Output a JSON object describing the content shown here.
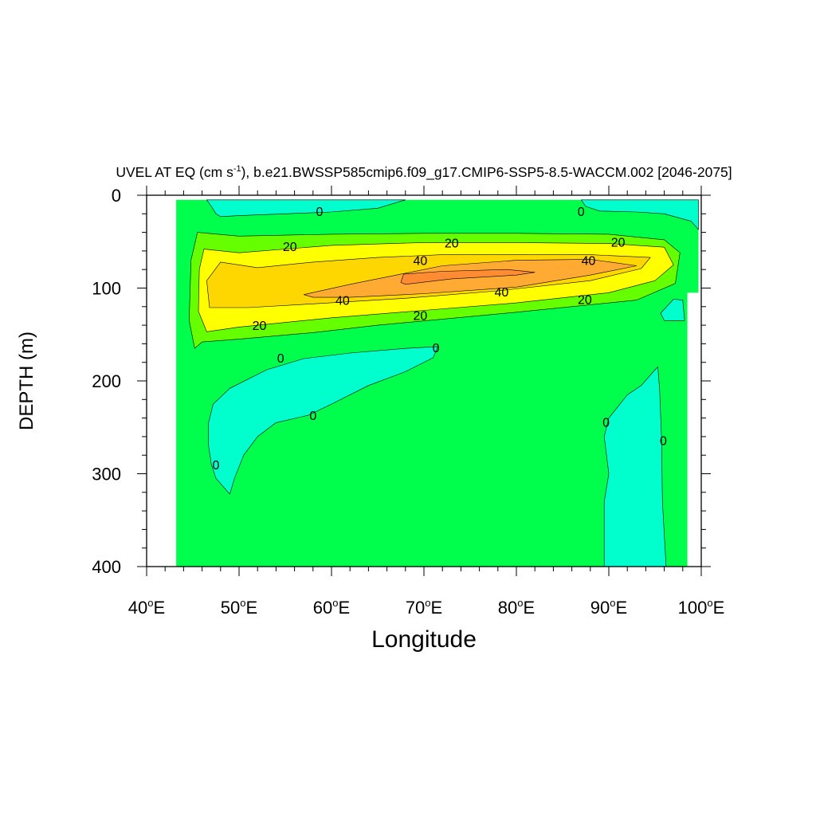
{
  "chart_data": {
    "type": "contour",
    "title_prefix": "UVEL AT EQ (cm s",
    "title_sup": "-1",
    "title_suffix": "), b.e21.BWSSP585cmip6.f09_g17.CMIP6-SSP5-8.5-WACCM.002 [2046-2075]",
    "xlabel": "Longitude",
    "ylabel": "DEPTH (m)",
    "xlim": [
      40,
      100
    ],
    "ylim": [
      0,
      400
    ],
    "y_inverted": true,
    "x_ticks": [
      40,
      50,
      60,
      70,
      80,
      90,
      100
    ],
    "x_tick_labels": [
      {
        "num": "40",
        "sup": "o",
        "suf": "E"
      },
      {
        "num": "50",
        "sup": "o",
        "suf": "E"
      },
      {
        "num": "60",
        "sup": "o",
        "suf": "E"
      },
      {
        "num": "70",
        "sup": "o",
        "suf": "E"
      },
      {
        "num": "80",
        "sup": "o",
        "suf": "E"
      },
      {
        "num": "90",
        "sup": "o",
        "suf": "E"
      },
      {
        "num": "100",
        "sup": "o",
        "suf": "E"
      }
    ],
    "y_ticks": [
      0,
      100,
      200,
      300,
      400
    ],
    "y_tick_labels": [
      "0",
      "100",
      "200",
      "300",
      "400"
    ],
    "data_extent": {
      "lon": [
        43.2,
        99.7
      ],
      "depth": [
        5,
        400
      ]
    },
    "levels": [
      {
        "min": -10,
        "max": 0,
        "color": "#00ffcc"
      },
      {
        "min": 0,
        "max": 10,
        "color": "#00ff4c"
      },
      {
        "min": 10,
        "max": 20,
        "color": "#66ff00"
      },
      {
        "min": 20,
        "max": 30,
        "color": "#ffff00"
      },
      {
        "min": 30,
        "max": 40,
        "color": "#ffd700"
      },
      {
        "min": 40,
        "max": 50,
        "color": "#ffaa33"
      },
      {
        "min": 50,
        "max": 60,
        "color": "#ff8c33"
      }
    ],
    "regions": [
      {
        "name": "jet-10",
        "color": "#66ff00",
        "points": [
          [
            45.5,
            40
          ],
          [
            50,
            44
          ],
          [
            60,
            42
          ],
          [
            70,
            41
          ],
          [
            80,
            41
          ],
          [
            90,
            42
          ],
          [
            96,
            48
          ],
          [
            97.7,
            62
          ],
          [
            97.2,
            95
          ],
          [
            93,
            113
          ],
          [
            80,
            126
          ],
          [
            65,
            140
          ],
          [
            58,
            148
          ],
          [
            50,
            155
          ],
          [
            46,
            158
          ],
          [
            45.2,
            165
          ],
          [
            44.6,
            135
          ],
          [
            44.8,
            70
          ]
        ]
      },
      {
        "name": "jet-20",
        "color": "#ffff00",
        "points": [
          [
            46.2,
            58
          ],
          [
            50,
            62
          ],
          [
            60,
            54
          ],
          [
            70,
            51
          ],
          [
            80,
            51
          ],
          [
            90,
            52
          ],
          [
            96,
            56
          ],
          [
            97,
            75
          ],
          [
            95,
            92
          ],
          [
            90,
            105
          ],
          [
            80,
            116
          ],
          [
            70,
            124
          ],
          [
            60,
            132
          ],
          [
            50,
            142
          ],
          [
            46.5,
            147
          ],
          [
            45.6,
            125
          ],
          [
            45.7,
            80
          ]
        ]
      },
      {
        "name": "jet-30",
        "color": "#ffd700",
        "points": [
          [
            48,
            72
          ],
          [
            52,
            78
          ],
          [
            58,
            72
          ],
          [
            65,
            67
          ],
          [
            72,
            64
          ],
          [
            80,
            64
          ],
          [
            88,
            64
          ],
          [
            94.5,
            67
          ],
          [
            93.5,
            79
          ],
          [
            88,
            92
          ],
          [
            78,
            103
          ],
          [
            68,
            111
          ],
          [
            58,
            117
          ],
          [
            51,
            121
          ],
          [
            46.8,
            121
          ],
          [
            46.5,
            92
          ]
        ]
      },
      {
        "name": "jet-40",
        "color": "#ffaa33",
        "points": [
          [
            57,
            107
          ],
          [
            62,
            96
          ],
          [
            67,
            86
          ],
          [
            72,
            76
          ],
          [
            80,
            70
          ],
          [
            88,
            69
          ],
          [
            93,
            76
          ],
          [
            88,
            86
          ],
          [
            80,
            99
          ],
          [
            70,
            106
          ],
          [
            62,
            110
          ],
          [
            58,
            110
          ]
        ]
      },
      {
        "name": "jet-50",
        "color": "#ff8c33",
        "points": [
          [
            67.5,
            94
          ],
          [
            67.8,
            85
          ],
          [
            72,
            82
          ],
          [
            79,
            80
          ],
          [
            82,
            83
          ],
          [
            80,
            86
          ],
          [
            73,
            90
          ],
          [
            68,
            96
          ]
        ]
      },
      {
        "name": "neg-top-left",
        "color": "#00ffcc",
        "points": [
          [
            46.5,
            5
          ],
          [
            68,
            5
          ],
          [
            65,
            14
          ],
          [
            60,
            18
          ],
          [
            55,
            20
          ],
          [
            50,
            22
          ],
          [
            48,
            23
          ],
          [
            47.5,
            20
          ],
          [
            47,
            12
          ]
        ]
      },
      {
        "name": "neg-top-right",
        "color": "#00ffcc",
        "points": [
          [
            87,
            5
          ],
          [
            99.7,
            5
          ],
          [
            99.7,
            37
          ],
          [
            98.9,
            28
          ],
          [
            96,
            20
          ],
          [
            93,
            18
          ],
          [
            89,
            17
          ],
          [
            87.5,
            12
          ]
        ]
      },
      {
        "name": "neg-right-notch",
        "color": "#00ffcc",
        "points": [
          [
            97,
            112
          ],
          [
            98,
            113
          ],
          [
            98.2,
            135
          ],
          [
            96,
            135
          ],
          [
            95.6,
            127
          ]
        ]
      },
      {
        "name": "neg-mid-left",
        "color": "#00ffcc",
        "points": [
          [
            71.5,
            163
          ],
          [
            71,
            175
          ],
          [
            68,
            190
          ],
          [
            64,
            205
          ],
          [
            60,
            225
          ],
          [
            57.5,
            237
          ],
          [
            54,
            245
          ],
          [
            52,
            260
          ],
          [
            50.5,
            280
          ],
          [
            49.5,
            305
          ],
          [
            49,
            322
          ],
          [
            47.5,
            305
          ],
          [
            47,
            290
          ],
          [
            46.7,
            270
          ],
          [
            46.7,
            245
          ],
          [
            47.2,
            225
          ],
          [
            49,
            208
          ],
          [
            53,
            188
          ],
          [
            57,
            176
          ],
          [
            62,
            170
          ],
          [
            68,
            165
          ]
        ]
      },
      {
        "name": "neg-deep-right",
        "color": "#00ffcc",
        "points": [
          [
            89.5,
            400
          ],
          [
            89.5,
            330
          ],
          [
            90,
            300
          ],
          [
            89.5,
            260
          ],
          [
            90,
            240
          ],
          [
            92,
            215
          ],
          [
            93.5,
            205
          ],
          [
            95,
            188
          ],
          [
            95.3,
            185
          ],
          [
            95.5,
            210
          ],
          [
            95.7,
            260
          ],
          [
            95.8,
            330
          ],
          [
            96.2,
            400
          ]
        ]
      },
      {
        "name": "white-right-gap",
        "color": "#ffffff",
        "points": [
          [
            98.5,
            105
          ],
          [
            99.7,
            105
          ],
          [
            99.7,
            400
          ],
          [
            98.5,
            400
          ]
        ]
      }
    ],
    "contour_labels": [
      {
        "text": "0",
        "lon": 58.7,
        "depth": 17
      },
      {
        "text": "0",
        "lon": 87,
        "depth": 17
      },
      {
        "text": "20",
        "lon": 55.5,
        "depth": 55
      },
      {
        "text": "20",
        "lon": 73,
        "depth": 51
      },
      {
        "text": "20",
        "lon": 91,
        "depth": 50
      },
      {
        "text": "40",
        "lon": 69.6,
        "depth": 70
      },
      {
        "text": "40",
        "lon": 87.8,
        "depth": 70
      },
      {
        "text": "40",
        "lon": 61.2,
        "depth": 113
      },
      {
        "text": "40",
        "lon": 78.4,
        "depth": 104
      },
      {
        "text": "20",
        "lon": 87.4,
        "depth": 112
      },
      {
        "text": "20",
        "lon": 52.2,
        "depth": 140
      },
      {
        "text": "20",
        "lon": 69.6,
        "depth": 129
      },
      {
        "text": "0",
        "lon": 54.5,
        "depth": 175
      },
      {
        "text": "0",
        "lon": 71.3,
        "depth": 164
      },
      {
        "text": "0",
        "lon": 58,
        "depth": 237
      },
      {
        "text": "0",
        "lon": 47.5,
        "depth": 290
      },
      {
        "text": "0",
        "lon": 89.7,
        "depth": 244
      },
      {
        "text": "0",
        "lon": 95.9,
        "depth": 264
      }
    ]
  }
}
